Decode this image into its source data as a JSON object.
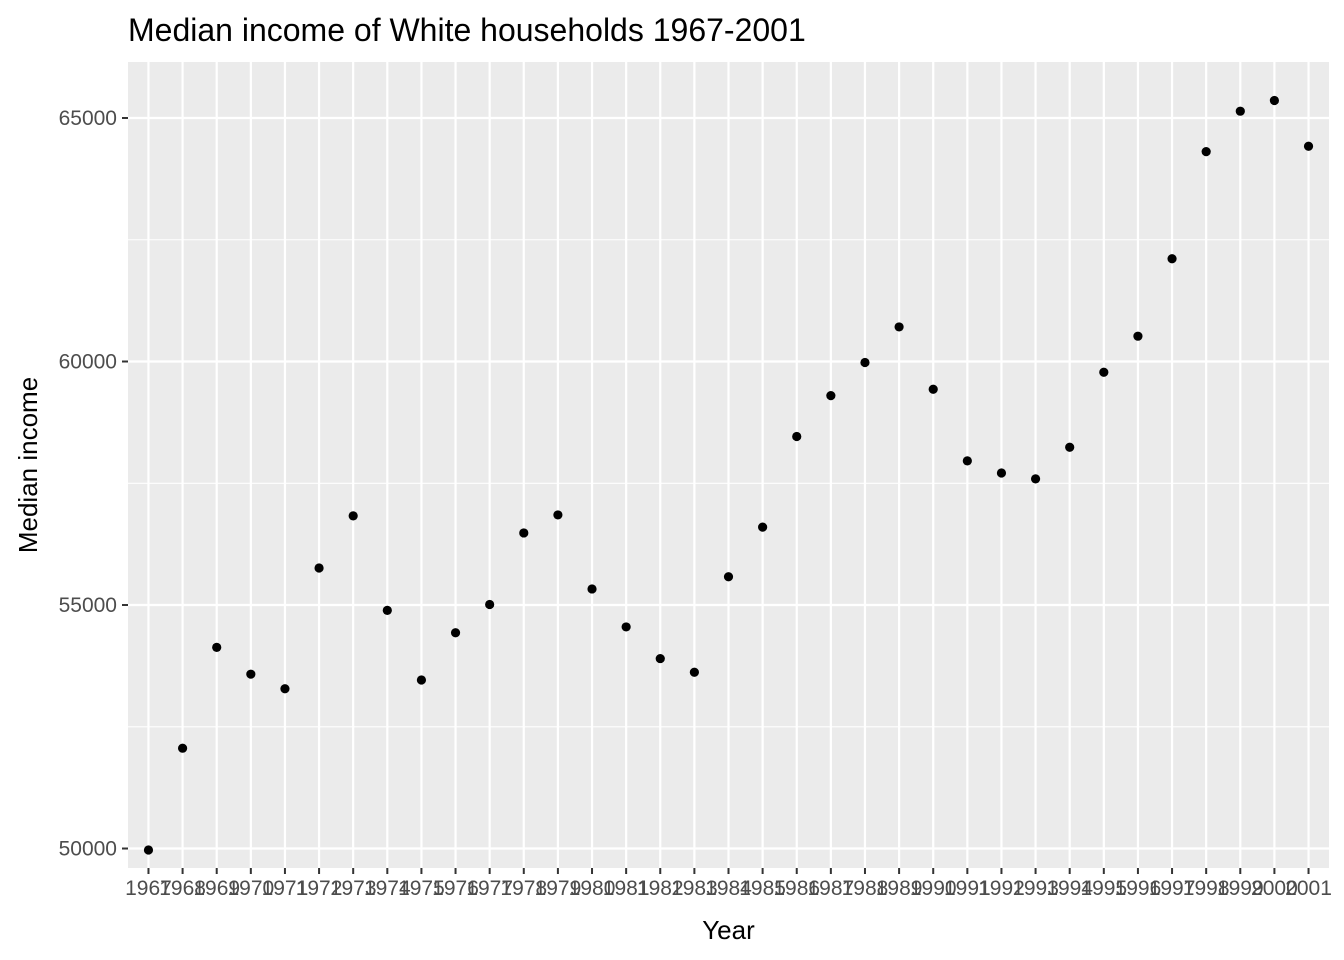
{
  "chart_data": {
    "type": "scatter",
    "title": "Median income of White households 1967-2001",
    "xlabel": "Year",
    "ylabel": "Median income",
    "x": [
      "1967",
      "1968",
      "1969",
      "1970",
      "1971",
      "1972",
      "1973",
      "1974",
      "1975",
      "1976",
      "1977",
      "1978",
      "1979",
      "1980",
      "1981",
      "1982",
      "1983",
      "1984",
      "1985",
      "1986",
      "1987",
      "1988",
      "1989",
      "1990",
      "1991",
      "1992",
      "1993",
      "1994",
      "1995",
      "1996",
      "1997",
      "1998",
      "1999",
      "2000",
      "2001"
    ],
    "y": [
      49970,
      52060,
      54130,
      53580,
      53280,
      55760,
      56830,
      54890,
      53460,
      54430,
      55010,
      56480,
      56850,
      55330,
      54550,
      53900,
      53620,
      55580,
      56600,
      58460,
      59300,
      59980,
      60710,
      59430,
      57960,
      57710,
      57590,
      58240,
      59780,
      60520,
      62110,
      64310,
      65140,
      65360,
      64420
    ],
    "ylim": [
      49600,
      66150
    ],
    "yticks": [
      50000,
      55000,
      60000,
      65000
    ],
    "grid": true,
    "colors": {
      "panel": "#ebebeb",
      "grid_major": "#ffffff",
      "point": "#000000"
    }
  }
}
